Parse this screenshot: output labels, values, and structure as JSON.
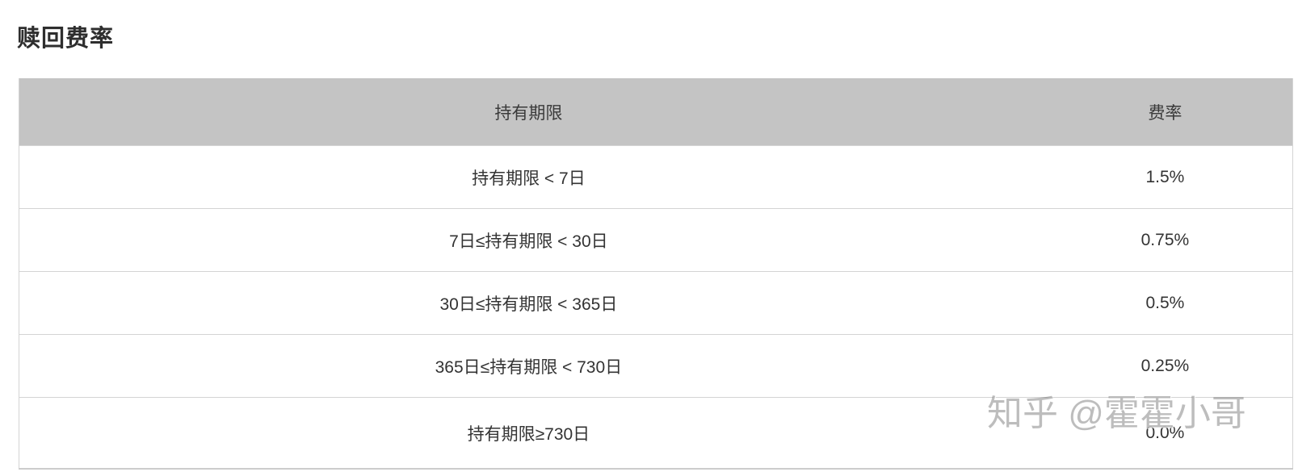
{
  "page": {
    "title": "赎回费率",
    "watermark": "知乎 @霍霍小哥"
  },
  "table": {
    "columns": [
      {
        "label": "持有期限"
      },
      {
        "label": "费率"
      }
    ],
    "rows": [
      {
        "period": "持有期限 < 7日",
        "rate": "1.5%"
      },
      {
        "period": "7日≤持有期限 < 30日",
        "rate": "0.75%"
      },
      {
        "period": "30日≤持有期限 < 365日",
        "rate": "0.5%"
      },
      {
        "period": "365日≤持有期限 < 730日",
        "rate": "0.25%"
      },
      {
        "period": "持有期限≥730日",
        "rate": "0.0%"
      }
    ]
  },
  "chart_data": {
    "type": "table",
    "title": "赎回费率",
    "columns": [
      "持有期限",
      "费率"
    ],
    "rows": [
      [
        "持有期限 < 7日",
        "1.5%"
      ],
      [
        "7日≤持有期限 < 30日",
        "0.75%"
      ],
      [
        "30日≤持有期限 < 365日",
        "0.5%"
      ],
      [
        "365日≤持有期限 < 730日",
        "0.25%"
      ],
      [
        "持有期限≥730日",
        "0.0%"
      ]
    ]
  },
  "colors": {
    "header_bg": "#c4c4c4",
    "row_border": "#d4d4d4",
    "text": "#333333",
    "title_text": "#2e2e2e",
    "watermark_gray": "#bdbdbd"
  }
}
